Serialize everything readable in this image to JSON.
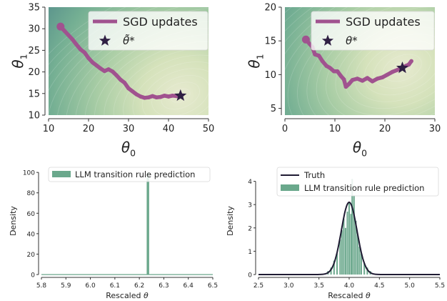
{
  "chart_data": [
    {
      "type": "line",
      "panel": "top-left",
      "xlabel": "θ0",
      "ylabel": "θ1",
      "xlim": [
        10,
        50
      ],
      "ylim": [
        10,
        35
      ],
      "xticks": [
        "10",
        "20",
        "30",
        "40",
        "50"
      ],
      "yticks": [
        "10",
        "15",
        "20",
        "25",
        "30",
        "35"
      ],
      "contour_center": [
        43,
        14.5
      ],
      "legend_position": "top-right",
      "series": [
        {
          "name": "SGD updates",
          "color": "#a0528f",
          "x": [
            13,
            14,
            15,
            16,
            17,
            18,
            19,
            20,
            21,
            22,
            23,
            24,
            25,
            26,
            27,
            28,
            29,
            30,
            31,
            32,
            33,
            34,
            35,
            36,
            37,
            38,
            39,
            40,
            41,
            42,
            43
          ],
          "y": [
            30.5,
            29.5,
            28.5,
            27.5,
            26.3,
            25.2,
            24.5,
            23.2,
            22.2,
            21.5,
            20.8,
            20.2,
            20.6,
            20.1,
            19.2,
            18.2,
            17.5,
            16.2,
            15.5,
            14.8,
            14.3,
            14.0,
            14.1,
            14.4,
            14.1,
            14.2,
            14.5,
            14.3,
            14.5,
            14.4,
            14.6
          ]
        },
        {
          "name": "θ̃*",
          "marker": "star",
          "color": "#2f1f43",
          "x": [
            43
          ],
          "y": [
            14.5
          ]
        }
      ]
    },
    {
      "type": "line",
      "panel": "top-right",
      "xlabel": "θ0",
      "ylabel": "θ1",
      "xlim": [
        0,
        30
      ],
      "ylim": [
        4,
        20
      ],
      "xticks": [
        "0",
        "10",
        "20",
        "30"
      ],
      "yticks": [
        "5",
        "10",
        "15",
        "20"
      ],
      "contour_center": [
        23.5,
        11
      ],
      "legend_position": "top-right",
      "series": [
        {
          "name": "SGD updates",
          "color": "#a0528f",
          "x": [
            4.2,
            5,
            5.5,
            6,
            6.8,
            7.5,
            8.3,
            9,
            9.8,
            10.5,
            11.2,
            11.8,
            12.2,
            12.8,
            13.5,
            14.5,
            15.5,
            16.5,
            17.5,
            18.5,
            19.5,
            20.5,
            21.5,
            22.5,
            23.5,
            24.2,
            24.8,
            25.3
          ],
          "y": [
            15.2,
            14.5,
            14.1,
            13.0,
            12.8,
            12.0,
            11.3,
            11.0,
            10.5,
            10.5,
            9.8,
            9.3,
            8.2,
            8.6,
            9.2,
            9.4,
            9.1,
            9.5,
            9.0,
            9.4,
            9.6,
            10.0,
            10.4,
            10.7,
            11.0,
            11.3,
            11.5,
            12.0
          ]
        },
        {
          "name": "θ*",
          "marker": "star",
          "color": "#2f1f43",
          "x": [
            23.5
          ],
          "y": [
            11
          ]
        }
      ]
    },
    {
      "type": "bar",
      "panel": "bottom-left",
      "xlabel": "Rescaled θ",
      "ylabel": "Density",
      "xlim": [
        5.8,
        6.5
      ],
      "ylim": [
        0,
        105
      ],
      "xticks": [
        "5.8",
        "5.9",
        "6.0",
        "6.1",
        "6.2",
        "6.3",
        "6.4",
        "6.5"
      ],
      "yticks": [
        "0",
        "20",
        "40",
        "60",
        "80",
        "100"
      ],
      "legend_position": "top-left",
      "series": [
        {
          "name": "LLM transition rule prediction",
          "color": "#6aa88c",
          "x": [
            6.235
          ],
          "values": [
            100
          ],
          "bin_width": 0.01
        }
      ]
    },
    {
      "type": "bar",
      "panel": "bottom-right",
      "xlabel": "Rescaled θ",
      "ylabel": "Density",
      "xlim": [
        2.5,
        5.5
      ],
      "ylim": [
        0,
        4.6
      ],
      "xticks": [
        "2.5",
        "3.0",
        "3.5",
        "4.0",
        "4.5",
        "5.0",
        "5.5"
      ],
      "yticks": [
        "0",
        "1",
        "2",
        "3",
        "4"
      ],
      "legend_position": "top-left",
      "series": [
        {
          "name": "Truth",
          "type": "line",
          "color": "#1f1b33",
          "distribution": "normal",
          "mean": 4.0,
          "sd": 0.13,
          "peak": 3.1
        },
        {
          "name": "LLM transition rule prediction",
          "color": "#6aa88c",
          "x": [
            3.65,
            3.7,
            3.75,
            3.8,
            3.85,
            3.88,
            3.91,
            3.94,
            3.97,
            4.0,
            4.03,
            4.05,
            4.08,
            4.11,
            4.14,
            4.17,
            4.2,
            4.25,
            4.3,
            4.35
          ],
          "values": [
            0.15,
            0.3,
            0.6,
            0.9,
            1.5,
            1.9,
            2.4,
            2.0,
            2.7,
            3.1,
            2.6,
            4.1,
            3.4,
            2.3,
            1.7,
            1.2,
            0.9,
            0.5,
            0.3,
            0.15
          ],
          "bin_width": 0.025
        }
      ]
    }
  ]
}
